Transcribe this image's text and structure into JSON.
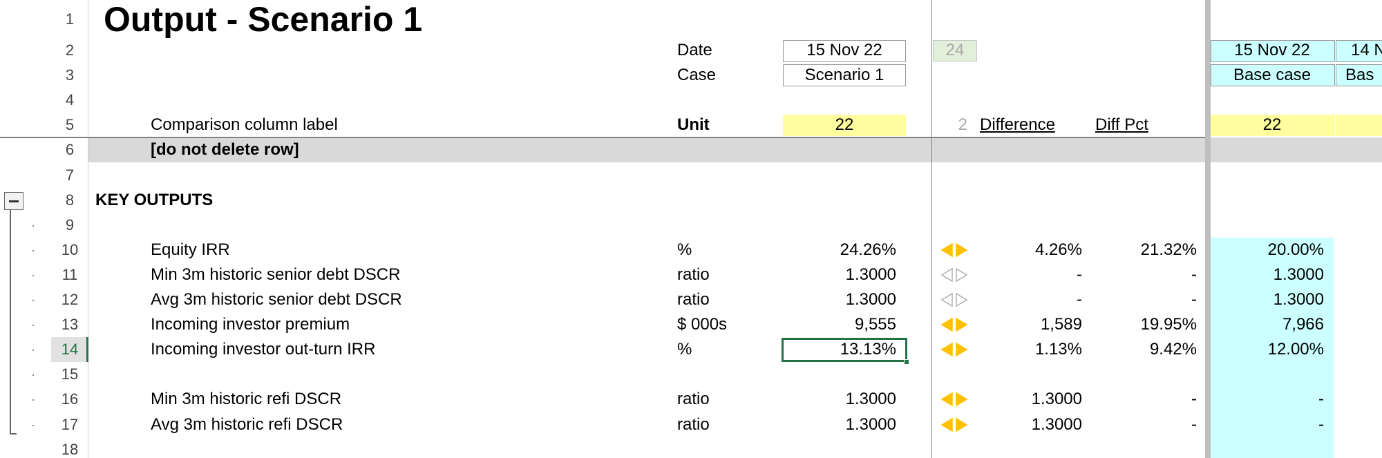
{
  "title": "Output - Scenario 1",
  "row_numbers": [
    "1",
    "2",
    "3",
    "4",
    "5",
    "6",
    "7",
    "8",
    "9",
    "10",
    "11",
    "12",
    "13",
    "14",
    "15",
    "16",
    "17",
    "18"
  ],
  "header": {
    "date_label": "Date",
    "date": "15 Nov 22",
    "case_label": "Case",
    "case": "Scenario 1",
    "offset": "24",
    "comparison_label": "Comparison column label",
    "unit_label": "Unit",
    "comparison_value": "22",
    "comparison_offset": "2",
    "difference_label": "Difference",
    "diff_pct_label": "Diff Pct"
  },
  "base_columns": [
    {
      "date": "15 Nov 22",
      "case": "Base case",
      "comparison": "22"
    },
    {
      "date": "14 N",
      "case": "Bas"
    }
  ],
  "separator_row": "[do not delete row]",
  "section": "KEY OUTPUTS",
  "rows": [
    {
      "label": "Equity IRR",
      "unit": "%",
      "value": "24.26%",
      "indicator": "filled",
      "difference": "4.26%",
      "diff_pct": "21.32%",
      "base": "20.00%"
    },
    {
      "label": "Min 3m historic senior debt DSCR",
      "unit": "ratio",
      "value": "1.3000",
      "indicator": "outline",
      "difference": "-",
      "diff_pct": "-",
      "base": "1.3000"
    },
    {
      "label": "Avg 3m historic senior debt DSCR",
      "unit": "ratio",
      "value": "1.3000",
      "indicator": "outline",
      "difference": "-",
      "diff_pct": "-",
      "base": "1.3000"
    },
    {
      "label": "Incoming investor premium",
      "unit": "$ 000s",
      "value": "9,555",
      "indicator": "filled",
      "difference": "1,589",
      "diff_pct": "19.95%",
      "base": "7,966"
    },
    {
      "label": "Incoming investor out-turn IRR",
      "unit": "%",
      "value": "13.13%",
      "indicator": "filled",
      "difference": "1.13%",
      "diff_pct": "9.42%",
      "base": "12.00%"
    }
  ],
  "refi_rows": [
    {
      "label": "Min 3m historic refi DSCR",
      "unit": "ratio",
      "value": "1.3000",
      "indicator": "filled",
      "difference": "1.3000",
      "diff_pct": "-",
      "base": "-"
    },
    {
      "label": "Avg 3m historic refi DSCR",
      "unit": "ratio",
      "value": "1.3000",
      "indicator": "filled",
      "difference": "1.3000",
      "diff_pct": "-",
      "base": "-"
    }
  ]
}
